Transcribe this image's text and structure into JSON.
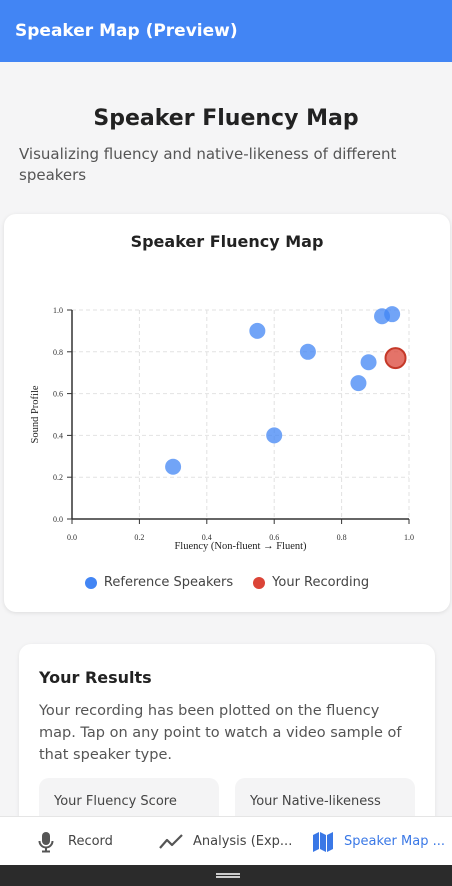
{
  "app_bar": {
    "title": "Speaker Map (Preview)"
  },
  "page": {
    "title": "Speaker Fluency Map",
    "subtitle": "Visualizing fluency and native-likeness of different speakers"
  },
  "chart_card": {
    "title": "Speaker Fluency Map",
    "legend": [
      {
        "label": "Reference Speakers",
        "color": "#4285f4"
      },
      {
        "label": "Your Recording",
        "color": "#db4437"
      }
    ]
  },
  "chart_data": {
    "type": "scatter",
    "title": "Speaker Fluency Map",
    "xlabel": "Fluency (Non-fluent → Fluent)",
    "ylabel": "Sound Profile",
    "xlim": [
      0,
      1
    ],
    "ylim": [
      0,
      1
    ],
    "xticks": [
      "0.0",
      "0.2",
      "0.4",
      "0.6",
      "0.8",
      "1.0"
    ],
    "yticks": [
      "0.0",
      "0.2",
      "0.4",
      "0.6",
      "0.8",
      "1.0"
    ],
    "grid": true,
    "series": [
      {
        "name": "Reference Speakers",
        "color": "#4285f4",
        "points": [
          {
            "x": 0.3,
            "y": 0.25
          },
          {
            "x": 0.55,
            "y": 0.9
          },
          {
            "x": 0.6,
            "y": 0.4
          },
          {
            "x": 0.7,
            "y": 0.8
          },
          {
            "x": 0.85,
            "y": 0.65
          },
          {
            "x": 0.88,
            "y": 0.75
          },
          {
            "x": 0.92,
            "y": 0.97
          },
          {
            "x": 0.95,
            "y": 0.98
          }
        ]
      },
      {
        "name": "Your Recording",
        "color": "#db4437",
        "points": [
          {
            "x": 0.96,
            "y": 0.77
          }
        ]
      }
    ]
  },
  "results": {
    "title": "Your Results",
    "text": "Your recording has been plotted on the fluency map. Tap on any point to watch a video sample of that speaker type.",
    "fluency_label": "Your Fluency Score",
    "native_label": "Your Native-likeness"
  },
  "bottom_nav": {
    "record": "Record",
    "analysis": "Analysis (Exp...",
    "speaker_map": "Speaker Map ..."
  }
}
